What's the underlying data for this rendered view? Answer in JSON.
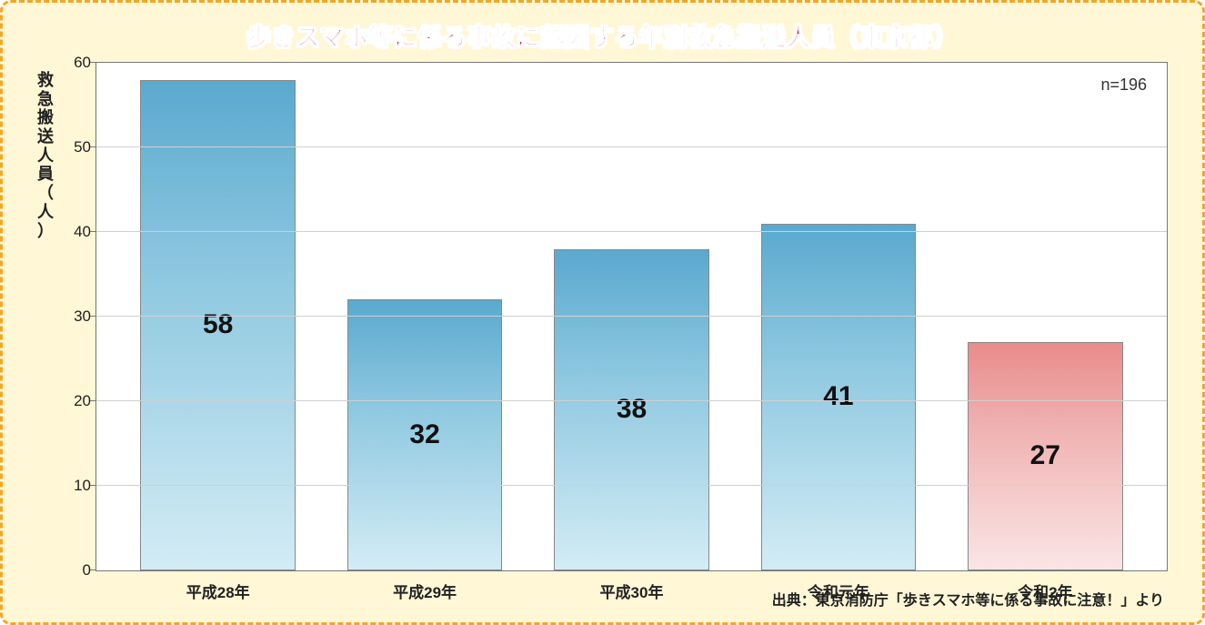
{
  "title": "歩きスマホ等に係る事故に起因する年別救急搬送人員（東京都）",
  "ylabel_chars": [
    "救",
    "急",
    "搬",
    "送",
    "人",
    "員",
    "（",
    "人",
    "）"
  ],
  "n_annotation": "n=196",
  "source": "出典：東京消防庁「歩きスマホ等に係る事故に注意！」より",
  "chart": {
    "type": "bar",
    "ylim": [
      0,
      60
    ],
    "yticks": [
      0,
      10,
      20,
      30,
      40,
      50,
      60
    ],
    "categories": [
      "平成28年",
      "平成29年",
      "平成30年",
      "令和元年",
      "令和2年"
    ],
    "values": [
      58,
      32,
      38,
      41,
      27
    ],
    "bar_styles": [
      "blue",
      "blue",
      "blue",
      "blue",
      "red"
    ],
    "bar_width_pct": 75,
    "background_color": "#ffffff",
    "frame_bg": "#fff7d6",
    "border_color": "#f5a623",
    "grid_color": "#d0d0d0",
    "axis_color": "#777777",
    "blue_gradient": [
      "#5aa9cf",
      "#8ec8e0",
      "#d3ecf5"
    ],
    "red_gradient": [
      "#e98b8b",
      "#f0b4b4",
      "#fbe5e5"
    ],
    "title_color": "#e6002d",
    "title_stroke": "#ffffff",
    "title_fontsize": 26,
    "label_fontsize": 30,
    "tick_fontsize": 17
  }
}
